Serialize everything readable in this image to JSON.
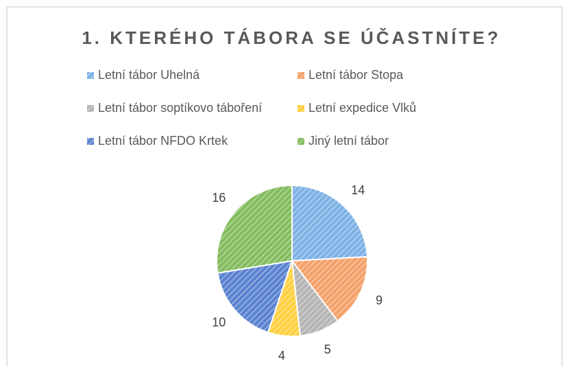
{
  "chart_data": {
    "type": "pie",
    "title": "1. KTERÉHO TÁBORA SE ÚČASTNÍTE?",
    "categories": [
      "Letní tábor Uhelná",
      "Letní tábor Stopa",
      "Letní tábor soptíkovo táboření",
      "Letní expedice Vlků",
      "Letní tábor NFDO Krtek",
      "Jiný letní tábor"
    ],
    "values": [
      14,
      9,
      5,
      4,
      10,
      16
    ],
    "colors": [
      "#7fb2e5",
      "#f4a26b",
      "#b5b5b5",
      "#ffd040",
      "#5b83d1",
      "#84bd5f"
    ]
  }
}
